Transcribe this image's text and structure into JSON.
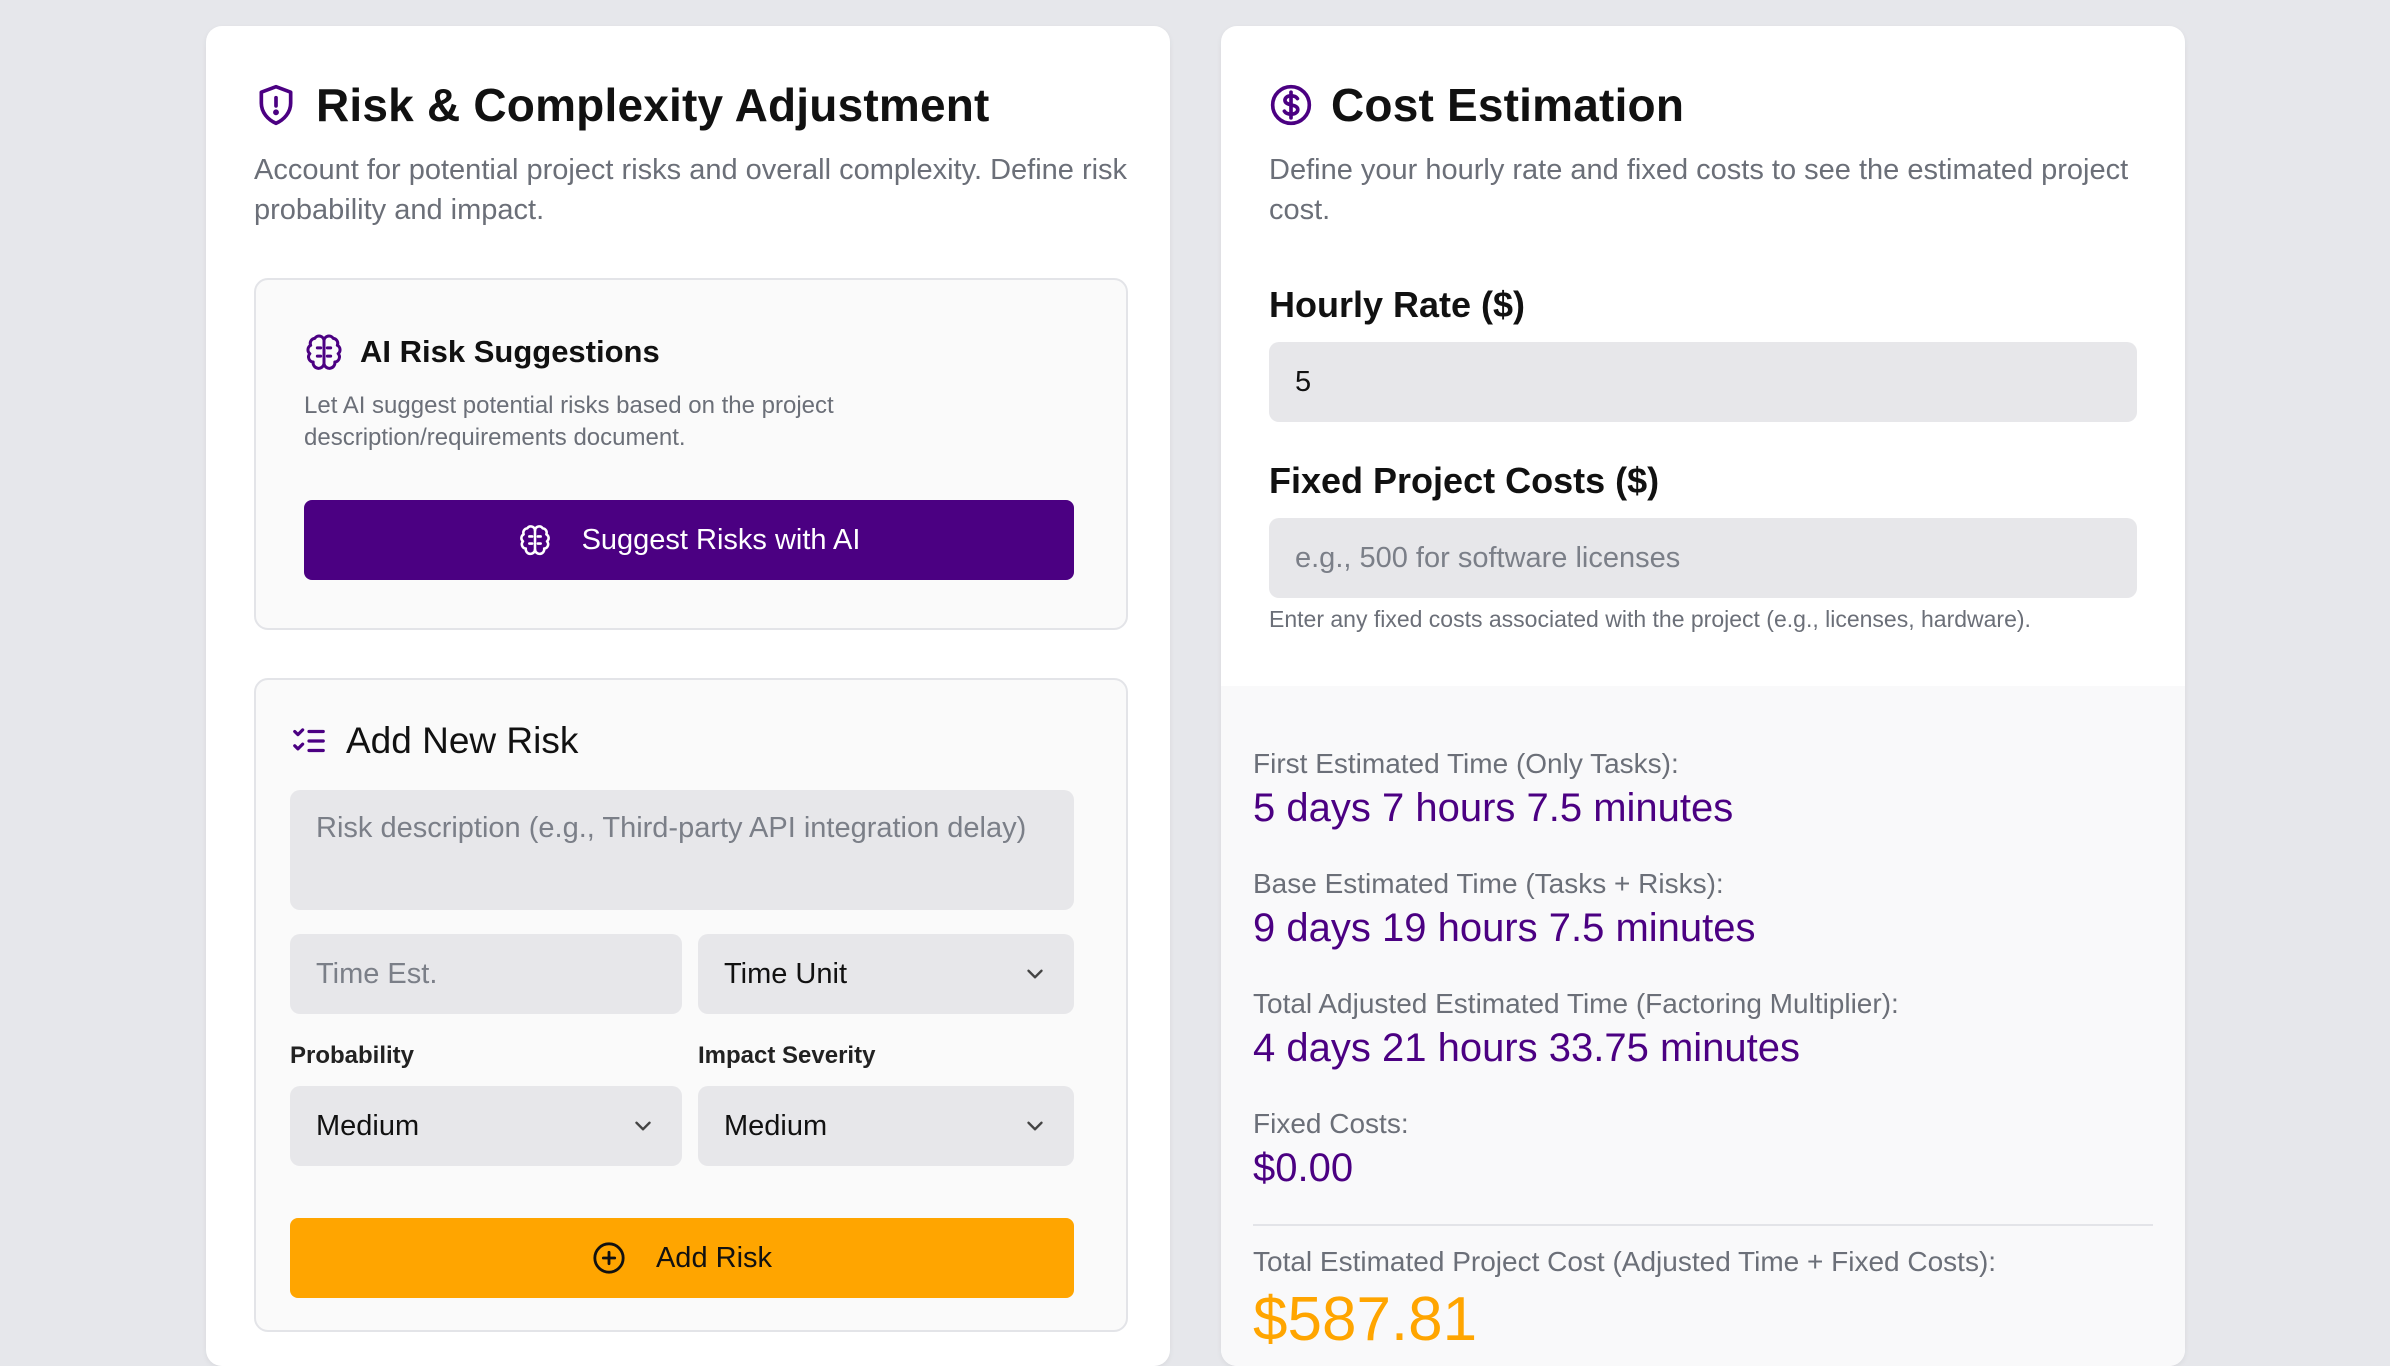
{
  "risk_card": {
    "title": "Risk & Complexity Adjustment",
    "description": "Account for potential project risks and overall complexity. Define risk probability and impact.",
    "ai_panel": {
      "title": "AI Risk Suggestions",
      "description": "Let AI suggest potential risks based on the project description/requirements document.",
      "button_label": "Suggest Risks with AI"
    },
    "add_risk": {
      "title": "Add New Risk",
      "description_placeholder": "Risk description (e.g., Third-party API integration delay)",
      "time_placeholder": "Time Est.",
      "time_unit_value": "Time Unit",
      "probability_label": "Probability",
      "probability_value": "Medium",
      "impact_label": "Impact Severity",
      "impact_value": "Medium",
      "button_label": "Add Risk"
    }
  },
  "cost_card": {
    "title": "Cost Estimation",
    "description": "Define your hourly rate and fixed costs to see the estimated project cost.",
    "hourly_label": "Hourly Rate ($)",
    "hourly_value": "5",
    "fixed_label": "Fixed Project Costs ($)",
    "fixed_placeholder": "e.g., 500 for software licenses",
    "fixed_hint": "Enter any fixed costs associated with the project (e.g., licenses, hardware).",
    "results": {
      "first_label": "First Estimated Time (Only Tasks):",
      "first_value": "5 days 7 hours 7.5 minutes",
      "base_label": "Base Estimated Time (Tasks + Risks):",
      "base_value": "9 days 19 hours 7.5 minutes",
      "adjusted_label": "Total Adjusted Estimated Time (Factoring Multiplier):",
      "adjusted_value": "4 days 21 hours 33.75 minutes",
      "fixed_costs_label": "Fixed Costs:",
      "fixed_costs_value": "$0.00",
      "total_label": "Total Estimated Project Cost (Adjusted Time + Fixed Costs):",
      "total_value": "$587.81"
    }
  },
  "colors": {
    "primary": "#4b0082",
    "accent": "#ffa500",
    "muted": "#6b6f78"
  },
  "icons": [
    "shield-alert-icon",
    "brain-icon",
    "list-checks-icon",
    "chevron-down-icon",
    "plus-circle-icon",
    "dollar-circle-icon"
  ]
}
